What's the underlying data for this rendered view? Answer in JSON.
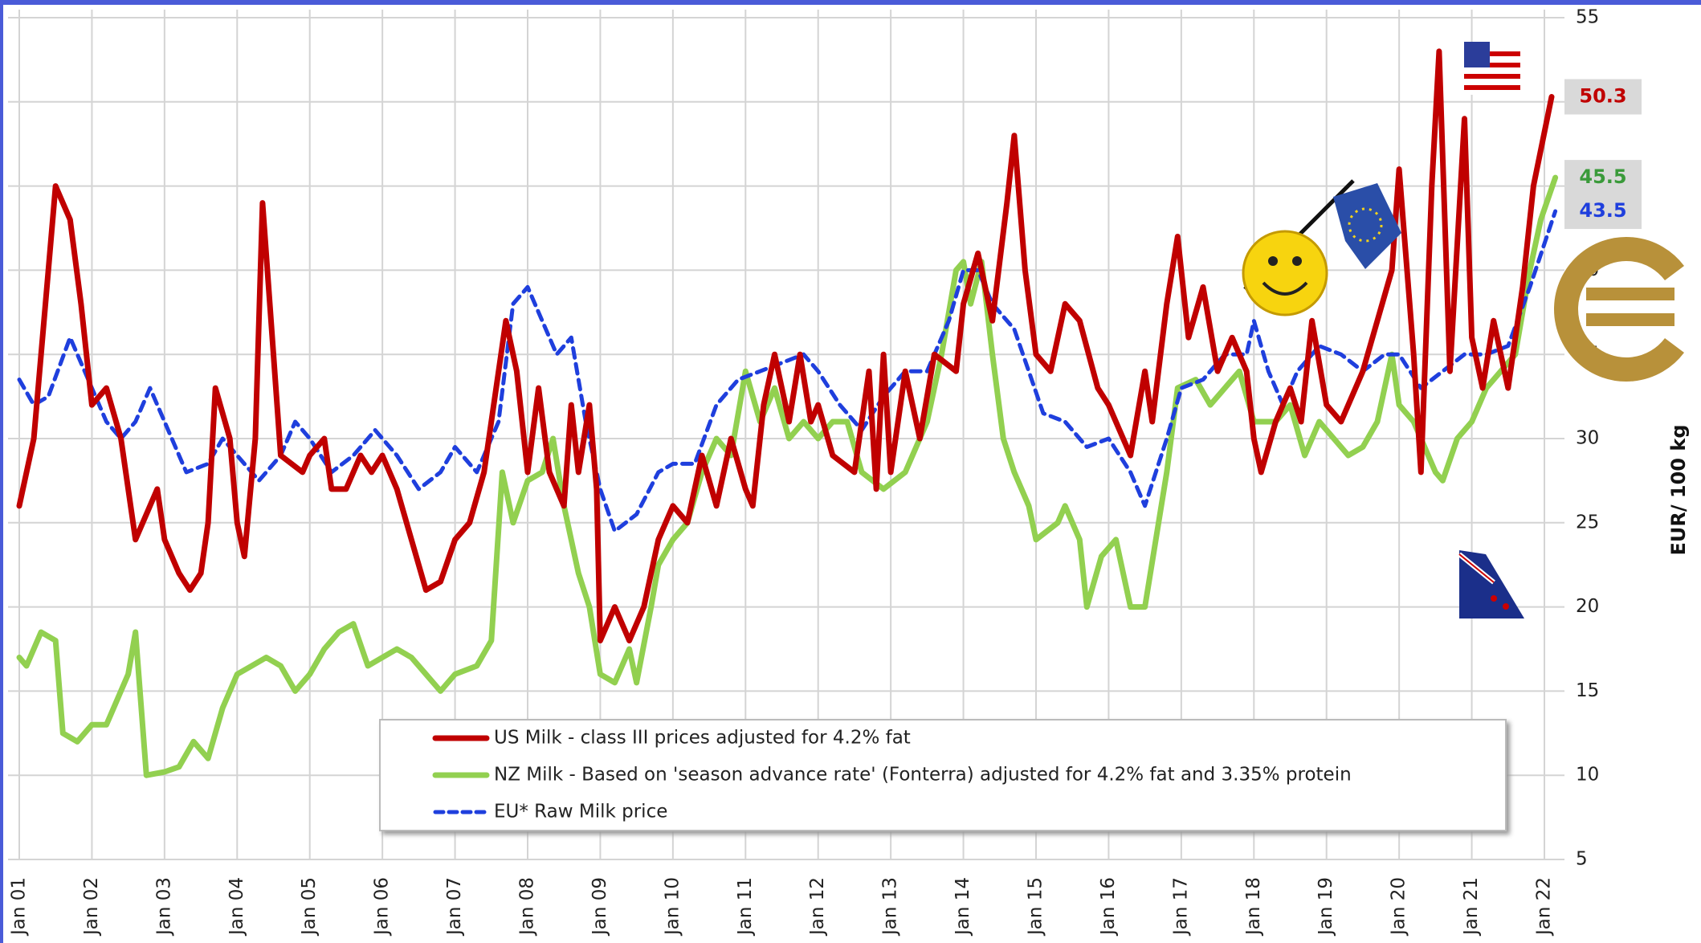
{
  "chart_data": {
    "type": "line",
    "y_axis_label": "EUR/ 100 kg",
    "xlim": [
      2001,
      2022
    ],
    "ylim": [
      5,
      55
    ],
    "yticks": [
      5,
      10,
      15,
      20,
      25,
      30,
      35,
      40,
      45,
      50,
      55
    ],
    "xticks": [
      {
        "value": 2001,
        "label": "Jan 01"
      },
      {
        "value": 2002,
        "label": "Jan 02"
      },
      {
        "value": 2003,
        "label": "Jan 03"
      },
      {
        "value": 2004,
        "label": "Jan 04"
      },
      {
        "value": 2005,
        "label": "Jan 05"
      },
      {
        "value": 2006,
        "label": "Jan 06"
      },
      {
        "value": 2007,
        "label": "Jan 07"
      },
      {
        "value": 2008,
        "label": "Jan 08"
      },
      {
        "value": 2009,
        "label": "Jan 09"
      },
      {
        "value": 2010,
        "label": "Jan 10"
      },
      {
        "value": 2011,
        "label": "Jan 11"
      },
      {
        "value": 2012,
        "label": "Jan 12"
      },
      {
        "value": 2013,
        "label": "Jan 13"
      },
      {
        "value": 2014,
        "label": "Jan 14"
      },
      {
        "value": 2015,
        "label": "Jan 15"
      },
      {
        "value": 2016,
        "label": "Jan 16"
      },
      {
        "value": 2017,
        "label": "Jan 17"
      },
      {
        "value": 2018,
        "label": "Jan 18"
      },
      {
        "value": 2019,
        "label": "Jan 19"
      },
      {
        "value": 2020,
        "label": "Jan 20"
      },
      {
        "value": 2021,
        "label": "Jan 21"
      },
      {
        "value": 2022,
        "label": "Jan 22"
      }
    ],
    "grid": true,
    "series": [
      {
        "name": "US Milk - class III prices adjusted for 4.2% fat",
        "color": "#c00000",
        "dash": false,
        "x": [
          2001.0,
          2001.2,
          2001.4,
          2001.5,
          2001.7,
          2001.85,
          2002.0,
          2002.2,
          2002.4,
          2002.6,
          2002.8,
          2002.9,
          2003.0,
          2003.2,
          2003.35,
          2003.5,
          2003.6,
          2003.7,
          2003.9,
          2004.0,
          2004.1,
          2004.25,
          2004.35,
          2004.5,
          2004.6,
          2004.9,
          2005.0,
          2005.2,
          2005.3,
          2005.5,
          2005.7,
          2005.85,
          2006.0,
          2006.2,
          2006.4,
          2006.6,
          2006.8,
          2007.0,
          2007.2,
          2007.4,
          2007.6,
          2007.7,
          2007.85,
          2008.0,
          2008.15,
          2008.3,
          2008.5,
          2008.6,
          2008.7,
          2008.85,
          2008.95,
          2009.0,
          2009.2,
          2009.4,
          2009.6,
          2009.8,
          2010.0,
          2010.2,
          2010.4,
          2010.6,
          2010.8,
          2011.0,
          2011.1,
          2011.25,
          2011.4,
          2011.6,
          2011.75,
          2011.9,
          2012.0,
          2012.2,
          2012.5,
          2012.7,
          2012.8,
          2012.9,
          2013.0,
          2013.2,
          2013.4,
          2013.6,
          2013.9,
          2014.0,
          2014.2,
          2014.4,
          2014.6,
          2014.7,
          2014.85,
          2015.0,
          2015.2,
          2015.4,
          2015.6,
          2015.85,
          2016.0,
          2016.3,
          2016.5,
          2016.6,
          2016.8,
          2016.95,
          2017.1,
          2017.3,
          2017.5,
          2017.7,
          2017.9,
          2018.0,
          2018.1,
          2018.3,
          2018.5,
          2018.65,
          2018.8,
          2019.0,
          2019.2,
          2019.5,
          2019.7,
          2019.9,
          2020.0,
          2020.2,
          2020.3,
          2020.45,
          2020.55,
          2020.7,
          2020.9,
          2021.0,
          2021.15,
          2021.3,
          2021.5,
          2021.7,
          2021.85,
          2022.1
        ],
        "values": [
          26,
          30,
          40,
          45,
          43,
          38,
          32,
          33,
          30,
          24,
          26,
          27,
          24,
          22,
          21,
          22,
          25,
          33,
          30,
          25,
          23,
          30,
          44,
          35,
          29,
          28,
          29,
          30,
          27,
          27,
          29,
          28,
          29,
          27,
          24,
          21,
          21.5,
          24,
          25,
          28,
          34,
          37,
          34,
          28,
          33,
          28,
          26,
          32,
          28,
          32,
          27,
          18,
          20,
          18,
          20,
          24,
          26,
          25,
          29,
          26,
          30,
          27,
          26,
          32,
          35,
          31,
          35,
          31,
          32,
          29,
          28,
          34,
          27,
          35,
          28,
          34,
          30,
          35,
          34,
          38,
          41,
          37,
          44,
          48,
          40,
          35,
          34,
          38,
          37,
          33,
          32,
          29,
          34,
          31,
          38,
          42,
          36,
          39,
          34,
          36,
          34,
          30,
          28,
          31,
          33,
          31,
          37,
          32,
          31,
          34,
          37,
          40,
          46,
          35,
          28,
          45,
          53,
          34,
          49,
          36,
          33,
          37,
          33,
          39,
          45,
          50.3
        ]
      },
      {
        "name": "NZ Milk - Based on 'season advance rate' (Fonterra) adjusted for 4.2% fat and 3.35% protein",
        "color": "#92d050",
        "dash": false,
        "x": [
          2001.0,
          2001.1,
          2001.3,
          2001.5,
          2001.6,
          2001.8,
          2002.0,
          2002.2,
          2002.5,
          2002.6,
          2002.75,
          2003.0,
          2003.2,
          2003.4,
          2003.6,
          2003.8,
          2004.0,
          2004.2,
          2004.4,
          2004.6,
          2004.8,
          2005.0,
          2005.2,
          2005.4,
          2005.6,
          2005.8,
          2006.0,
          2006.2,
          2006.4,
          2006.6,
          2006.8,
          2007.0,
          2007.3,
          2007.5,
          2007.65,
          2007.8,
          2008.0,
          2008.2,
          2008.35,
          2008.5,
          2008.7,
          2008.85,
          2009.0,
          2009.2,
          2009.4,
          2009.5,
          2009.7,
          2009.8,
          2010.0,
          2010.2,
          2010.4,
          2010.6,
          2010.8,
          2011.0,
          2011.2,
          2011.4,
          2011.6,
          2011.8,
          2012.0,
          2012.2,
          2012.4,
          2012.6,
          2012.9,
          2013.2,
          2013.5,
          2013.7,
          2013.9,
          2014.0,
          2014.1,
          2014.25,
          2014.4,
          2014.55,
          2014.7,
          2014.9,
          2015.0,
          2015.3,
          2015.4,
          2015.6,
          2015.7,
          2015.9,
          2016.1,
          2016.3,
          2016.5,
          2016.8,
          2016.95,
          2017.2,
          2017.4,
          2017.6,
          2017.8,
          2018.0,
          2018.3,
          2018.5,
          2018.7,
          2018.9,
          2019.1,
          2019.3,
          2019.5,
          2019.7,
          2019.9,
          2020.0,
          2020.2,
          2020.5,
          2020.6,
          2020.8,
          2021.0,
          2021.2,
          2021.4,
          2021.6,
          2021.8,
          2021.95,
          2022.15
        ],
        "values": [
          17,
          16.5,
          18.5,
          18,
          12.5,
          12,
          13,
          13,
          16,
          18.5,
          10,
          10.2,
          10.5,
          12,
          11,
          14,
          16,
          16.5,
          17,
          16.5,
          15,
          16,
          17.5,
          18.5,
          19,
          16.5,
          17,
          17.5,
          17,
          16,
          15,
          16,
          16.5,
          18,
          28,
          25,
          27.5,
          28,
          30,
          26,
          22,
          20,
          16,
          15.5,
          17.5,
          15.5,
          20,
          22.5,
          24,
          25,
          28,
          30,
          29,
          34,
          31,
          33,
          30,
          31,
          30,
          31,
          31,
          28,
          27,
          28,
          31,
          35,
          40,
          40.5,
          38,
          40.5,
          35,
          30,
          28,
          26,
          24,
          25,
          26,
          24,
          20,
          23,
          24,
          20,
          20,
          28,
          33,
          33.5,
          32,
          33,
          34,
          31,
          31,
          32,
          29,
          31,
          30,
          29,
          29.5,
          31,
          35,
          32,
          31,
          28,
          27.5,
          30,
          31,
          33,
          34,
          35,
          40,
          43,
          45.5
        ]
      },
      {
        "name": "EU* Raw Milk price",
        "color": "#1f3fdd",
        "dash": true,
        "x": [
          2001.0,
          2001.2,
          2001.4,
          2001.7,
          2002.0,
          2002.2,
          2002.4,
          2002.6,
          2002.8,
          2003.0,
          2003.3,
          2003.6,
          2003.8,
          2004.0,
          2004.3,
          2004.6,
          2004.8,
          2005.0,
          2005.3,
          2005.6,
          2005.9,
          2006.2,
          2006.5,
          2006.8,
          2007.0,
          2007.3,
          2007.6,
          2007.8,
          2008.0,
          2008.2,
          2008.4,
          2008.6,
          2008.8,
          2009.0,
          2009.2,
          2009.5,
          2009.8,
          2010.0,
          2010.3,
          2010.6,
          2010.9,
          2011.2,
          2011.5,
          2011.8,
          2012.0,
          2012.3,
          2012.6,
          2012.9,
          2013.2,
          2013.5,
          2013.8,
          2014.0,
          2014.2,
          2014.4,
          2014.7,
          2014.9,
          2015.1,
          2015.4,
          2015.7,
          2016.0,
          2016.3,
          2016.5,
          2016.8,
          2017.0,
          2017.3,
          2017.6,
          2017.9,
          2018.0,
          2018.2,
          2018.4,
          2018.6,
          2018.9,
          2019.2,
          2019.5,
          2019.8,
          2020.0,
          2020.3,
          2020.6,
          2020.9,
          2021.2,
          2021.5,
          2021.8,
          2022.15
        ],
        "values": [
          33.5,
          32,
          32.5,
          36,
          33,
          31,
          30,
          31,
          33,
          31,
          28,
          28.5,
          30,
          29,
          27.5,
          29,
          31,
          30,
          28,
          29,
          30.5,
          29,
          27,
          28,
          29.5,
          28,
          31,
          38,
          39,
          37,
          35,
          36,
          31,
          27,
          24.5,
          25.5,
          28,
          28.5,
          28.5,
          32,
          33.5,
          34,
          34.5,
          35,
          34,
          32,
          30.5,
          32.5,
          34,
          34,
          37,
          40,
          40,
          38,
          36.5,
          34,
          31.5,
          31,
          29.5,
          30,
          28,
          26,
          30,
          33,
          33.5,
          35,
          35,
          37,
          34,
          32,
          34,
          35.5,
          35,
          34,
          35,
          35,
          33,
          34,
          35,
          35,
          35.5,
          39,
          43.5
        ]
      }
    ],
    "annotations": [
      {
        "label": "50.3",
        "value": 50.3,
        "color": "#c00000"
      },
      {
        "label": "45.5",
        "value": 45.5,
        "color": "#3a9a3a"
      },
      {
        "label": "43.5",
        "value": 43.5,
        "color": "#1f3fdd"
      }
    ]
  }
}
